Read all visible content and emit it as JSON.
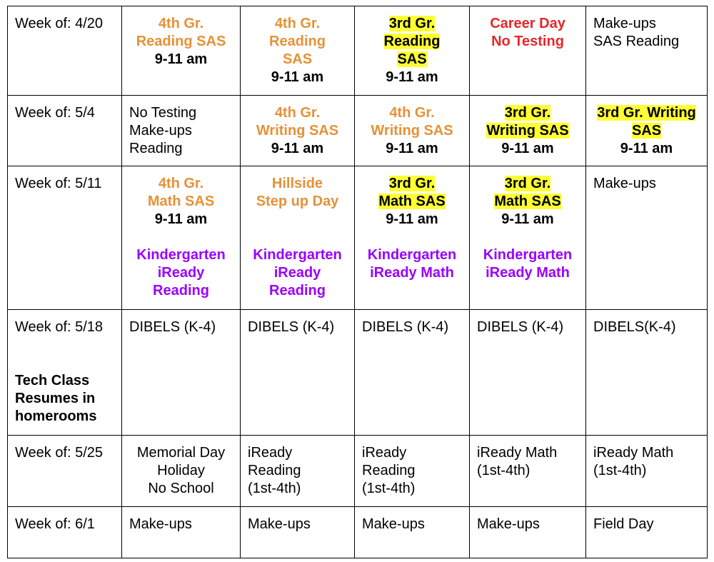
{
  "colors": {
    "orange": "#e69138",
    "red": "#e8262a",
    "purple": "#9900ff",
    "highlight": "#ffff33"
  },
  "rows": [
    {
      "week": "Week of: 4/20",
      "cells": [
        [
          "4th Gr.",
          "Reading SAS",
          "9-11 am"
        ],
        [
          "4th Gr.",
          "Reading",
          "SAS",
          "9-11 am"
        ],
        [
          "3rd Gr.",
          "Reading",
          "SAS",
          "9-11 am"
        ],
        [
          "Career Day",
          "No Testing"
        ],
        [
          "Make-ups",
          "SAS Reading"
        ]
      ]
    },
    {
      "week": "Week of: 5/4",
      "cells": [
        [
          "No Testing",
          "Make-ups",
          "Reading"
        ],
        [
          "4th Gr.",
          "Writing SAS",
          "9-11 am"
        ],
        [
          "4th Gr.",
          "Writing SAS",
          "9-11 am"
        ],
        [
          "3rd Gr.",
          "Writing SAS",
          "9-11 am"
        ],
        [
          "3rd Gr. Writing",
          "SAS",
          "9-11 am"
        ]
      ]
    },
    {
      "week": "Week of: 5/11",
      "cells": [
        [
          "4th Gr.",
          "Math SAS",
          "9-11 am",
          "Kindergarten",
          "iReady",
          "Reading"
        ],
        [
          "Hillside",
          "Step up Day",
          "Kindergarten",
          "iReady",
          "Reading"
        ],
        [
          "3rd Gr.",
          "Math SAS",
          "9-11 am",
          "Kindergarten",
          "iReady Math"
        ],
        [
          "3rd Gr.",
          "Math SAS",
          "9-11 am",
          "Kindergarten",
          "iReady Math"
        ],
        [
          "Make-ups"
        ]
      ]
    },
    {
      "week": "Week of: 5/18",
      "note": [
        "Tech Class",
        "Resumes in",
        "homerooms"
      ],
      "cells": [
        [
          "DIBELS (K-4)"
        ],
        [
          "DIBELS (K-4)"
        ],
        [
          "DIBELS (K-4)"
        ],
        [
          "DIBELS (K-4)"
        ],
        [
          "DIBELS(K-4)"
        ]
      ]
    },
    {
      "week": "Week of: 5/25",
      "cells": [
        [
          "Memorial Day",
          "Holiday",
          "No School"
        ],
        [
          "iReady",
          "Reading",
          "(1st-4th)"
        ],
        [
          "iReady",
          "Reading",
          "(1st-4th)"
        ],
        [
          "iReady Math",
          "(1st-4th)"
        ],
        [
          "iReady Math",
          "(1st-4th)"
        ]
      ]
    },
    {
      "week": "Week of: 6/1",
      "cells": [
        [
          "Make-ups"
        ],
        [
          "Make-ups"
        ],
        [
          "Make-ups"
        ],
        [
          "Make-ups"
        ],
        [
          "Field Day"
        ]
      ]
    }
  ]
}
